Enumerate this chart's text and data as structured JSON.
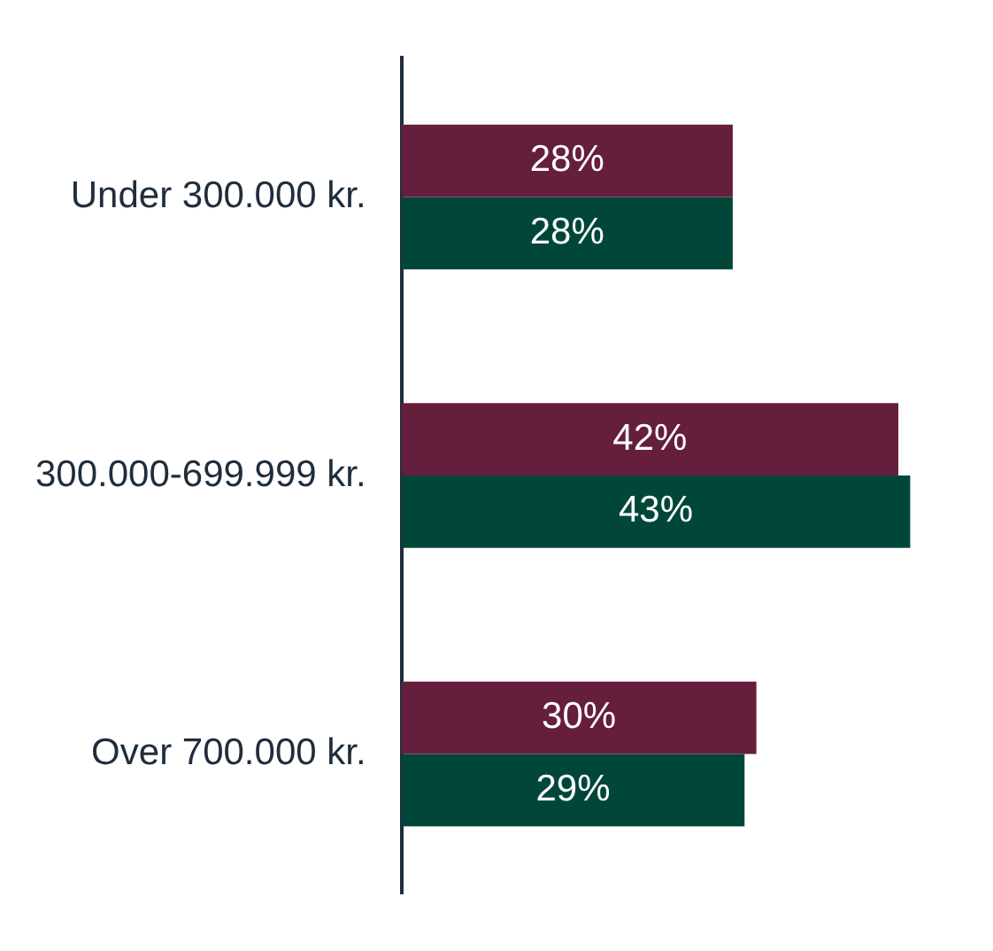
{
  "chart_data": {
    "type": "bar",
    "orientation": "horizontal",
    "categories": [
      "Under 300.000 kr.",
      "300.000-699.999 kr.",
      "Over 700.000 kr."
    ],
    "series": [
      {
        "color": "#651e3c",
        "values": [
          28,
          42,
          30
        ],
        "value_labels": [
          "28%",
          "42%",
          "30%"
        ]
      },
      {
        "color": "#00473a",
        "values": [
          28,
          43,
          29
        ],
        "value_labels": [
          "28%",
          "43%",
          "29%"
        ]
      }
    ],
    "tick_labels": "y",
    "legend": false
  }
}
